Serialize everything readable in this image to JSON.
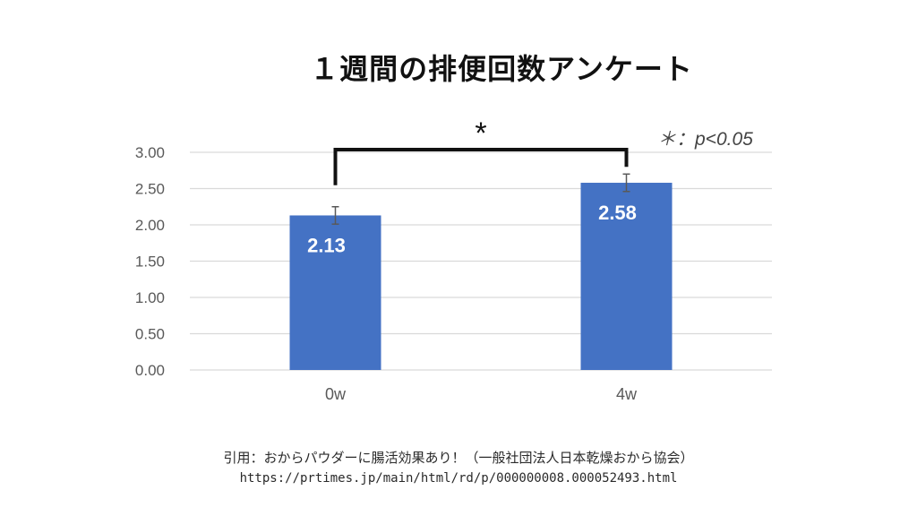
{
  "title": "１週間の排便回数アンケート",
  "significance": {
    "marker": "*",
    "note": "＊：p<0.05"
  },
  "citation": {
    "line1": "引用：おからパウダーに腸活効果あり！（一般社団法人日本乾燥おから協会）",
    "line2": "https://prtimes.jp/main/html/rd/p/000000008.000052493.html"
  },
  "chart_data": {
    "type": "bar",
    "categories": [
      "0w",
      "4w"
    ],
    "values": [
      2.13,
      2.58
    ],
    "value_labels": [
      "2.13",
      "2.58"
    ],
    "error": [
      0.12,
      0.12
    ],
    "ylim": [
      0,
      3
    ],
    "yticks": [
      "0.00",
      "0.50",
      "1.00",
      "1.50",
      "2.00",
      "2.50",
      "3.00"
    ],
    "grid": true,
    "bar_color": "#4472C4",
    "grid_color": "#D9D9D9",
    "title": "",
    "xlabel": "",
    "ylabel": ""
  }
}
